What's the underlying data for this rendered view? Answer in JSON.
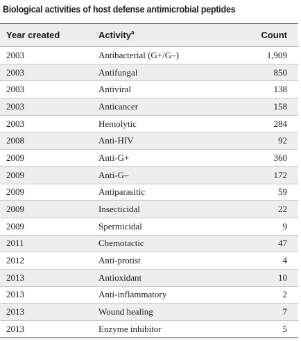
{
  "table_title": "Biological activities of host defense antimicrobial peptides",
  "columns": {
    "year": "Year created",
    "activity": "Activity",
    "activity_footnote": "a",
    "count": "Count"
  },
  "rows": [
    {
      "year": "2003",
      "activity": "Antibacterial (G+/G–)",
      "count": "1,909"
    },
    {
      "year": "2003",
      "activity": "Antifungal",
      "count": "850"
    },
    {
      "year": "2003",
      "activity": "Antiviral",
      "count": "138"
    },
    {
      "year": "2003",
      "activity": "Anticancer",
      "count": "158"
    },
    {
      "year": "2003",
      "activity": "Hemolytic",
      "count": "284"
    },
    {
      "year": "2008",
      "activity": "Anti-HIV",
      "count": "92"
    },
    {
      "year": "2009",
      "activity": "Anti-G+",
      "count": "360"
    },
    {
      "year": "2009",
      "activity": "Anti-G–",
      "count": "172"
    },
    {
      "year": "2009",
      "activity": "Antiparasitic",
      "count": "59"
    },
    {
      "year": "2009",
      "activity": "Insecticidal",
      "count": "22"
    },
    {
      "year": "2009",
      "activity": "Spermicidal",
      "count": "9"
    },
    {
      "year": "2011",
      "activity": "Chemotactic",
      "count": "47"
    },
    {
      "year": "2012",
      "activity": "Anti-protist",
      "count": "4"
    },
    {
      "year": "2013",
      "activity": "Antioxidant",
      "count": "10"
    },
    {
      "year": "2013",
      "activity": "Anti-inflammatory",
      "count": "2"
    },
    {
      "year": "2013",
      "activity": "Wound healing",
      "count": "7"
    },
    {
      "year": "2013",
      "activity": "Enzyme inhibitor",
      "count": "5"
    }
  ]
}
